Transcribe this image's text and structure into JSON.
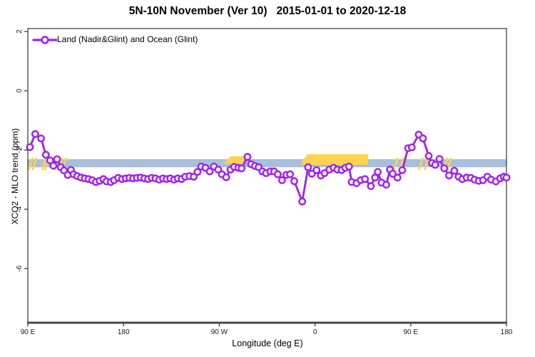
{
  "chart_data": {
    "type": "line",
    "title": "5N-10N November (Ver 10)   2015-01-01 to 2020-12-18",
    "xlabel": "Longitude (deg E)",
    "ylabel": "XCO2 - MLO trend (ppm)",
    "legend_position": "top-left",
    "grid": false,
    "xlim": [
      90,
      540
    ],
    "ylim": [
      -7.83,
      2.1
    ],
    "x_ticks": [
      {
        "deg": 90,
        "label": "90 E"
      },
      {
        "deg": 180,
        "label": "180"
      },
      {
        "deg": 270,
        "label": "90 W"
      },
      {
        "deg": 360,
        "label": "0"
      },
      {
        "deg": 450,
        "label": "90 E"
      },
      {
        "deg": 540,
        "label": "180"
      }
    ],
    "y_ticks": [
      {
        "value": 2,
        "label": "2"
      },
      {
        "value": 0,
        "label": "0"
      },
      {
        "value": -2,
        "label": "-2"
      },
      {
        "value": -4,
        "label": "-4"
      },
      {
        "value": -6,
        "label": "-6"
      }
    ],
    "reference_band": {
      "color": "#a9bfdb",
      "value_top": -2.31,
      "value_bottom": -2.58,
      "x_from": 90,
      "x_to": 540
    },
    "highlights": {
      "color": "#ffd24f",
      "segments": [
        {
          "from": 91,
          "to": 98,
          "style": "hatch"
        },
        {
          "from": 104,
          "to": 109,
          "style": "hatch"
        },
        {
          "from": 115,
          "to": 126,
          "style": "hatch"
        },
        {
          "from": 274,
          "to": 294,
          "style": "solid",
          "value_top": -2.21,
          "value_bottom": -2.47
        },
        {
          "from": 346,
          "to": 410,
          "style": "solid",
          "value_top": -2.14,
          "value_bottom": -2.5
        },
        {
          "from": 434,
          "to": 438,
          "style": "hatch"
        },
        {
          "from": 440,
          "to": 443,
          "style": "hatch"
        },
        {
          "from": 458,
          "to": 461,
          "style": "hatch"
        },
        {
          "from": 464,
          "to": 466,
          "style": "hatch"
        },
        {
          "from": 481,
          "to": 488,
          "style": "hatch"
        }
      ]
    },
    "series": [
      {
        "name": "Land (Nadir&Glint) and Ocean (Glint)",
        "color": "#a020f0",
        "marker": "open-circle",
        "points": [
          [
            92,
            -1.9
          ],
          [
            97,
            -1.46
          ],
          [
            102.5,
            -1.61
          ],
          [
            107,
            -2.16
          ],
          [
            111,
            -2.35
          ],
          [
            114,
            -2.53
          ],
          [
            117.5,
            -2.31
          ],
          [
            121,
            -2.58
          ],
          [
            124,
            -2.69
          ],
          [
            127.5,
            -2.84
          ],
          [
            130.5,
            -2.67
          ],
          [
            133,
            -2.82
          ],
          [
            136.5,
            -2.88
          ],
          [
            140,
            -2.93
          ],
          [
            143.5,
            -2.96
          ],
          [
            147,
            -2.98
          ],
          [
            150.5,
            -3.02
          ],
          [
            154,
            -3.08
          ],
          [
            157.5,
            -3.04
          ],
          [
            161,
            -2.98
          ],
          [
            164,
            -3.06
          ],
          [
            168,
            -3.08
          ],
          [
            171,
            -3.02
          ],
          [
            175,
            -2.94
          ],
          [
            178.5,
            -2.98
          ],
          [
            182,
            -2.96
          ],
          [
            185.5,
            -2.94
          ],
          [
            189,
            -2.96
          ],
          [
            192.5,
            -2.94
          ],
          [
            196,
            -2.93
          ],
          [
            199.5,
            -2.96
          ],
          [
            203,
            -2.98
          ],
          [
            206.5,
            -2.94
          ],
          [
            210,
            -2.96
          ],
          [
            213.5,
            -3.0
          ],
          [
            217,
            -2.96
          ],
          [
            220.5,
            -2.98
          ],
          [
            224,
            -2.96
          ],
          [
            227.5,
            -3.0
          ],
          [
            231,
            -2.96
          ],
          [
            234.5,
            -2.98
          ],
          [
            238,
            -2.9
          ],
          [
            242,
            -2.88
          ],
          [
            246,
            -2.9
          ],
          [
            249.5,
            -2.74
          ],
          [
            253,
            -2.56
          ],
          [
            257,
            -2.6
          ],
          [
            261,
            -2.72
          ],
          [
            265,
            -2.56
          ],
          [
            269,
            -2.66
          ],
          [
            272.5,
            -2.82
          ],
          [
            276.5,
            -2.92
          ],
          [
            280.5,
            -2.66
          ],
          [
            284,
            -2.57
          ],
          [
            288,
            -2.6
          ],
          [
            291,
            -2.62
          ],
          [
            296.5,
            -2.23
          ],
          [
            300,
            -2.48
          ],
          [
            303.5,
            -2.54
          ],
          [
            307,
            -2.58
          ],
          [
            310.5,
            -2.72
          ],
          [
            314,
            -2.78
          ],
          [
            318,
            -2.72
          ],
          [
            321.5,
            -2.72
          ],
          [
            325,
            -2.82
          ],
          [
            329,
            -3.02
          ],
          [
            333,
            -2.84
          ],
          [
            336.5,
            -2.82
          ],
          [
            340.5,
            -3.05
          ],
          [
            348,
            -3.74
          ],
          [
            353.5,
            -2.58
          ],
          [
            357,
            -2.8
          ],
          [
            361.5,
            -2.68
          ],
          [
            365.5,
            -2.86
          ],
          [
            369,
            -2.78
          ],
          [
            373.5,
            -2.66
          ],
          [
            377.5,
            -2.6
          ],
          [
            381,
            -2.66
          ],
          [
            385,
            -2.68
          ],
          [
            388.5,
            -2.6
          ],
          [
            392,
            -2.56
          ],
          [
            394.5,
            -3.08
          ],
          [
            399,
            -3.12
          ],
          [
            403,
            -3.02
          ],
          [
            407,
            -2.98
          ],
          [
            412.5,
            -3.22
          ],
          [
            416.5,
            -2.93
          ],
          [
            419,
            -2.74
          ],
          [
            422.5,
            -3.1
          ],
          [
            427,
            -3.17
          ],
          [
            430.5,
            -2.66
          ],
          [
            433,
            -2.8
          ],
          [
            437.5,
            -2.93
          ],
          [
            442,
            -2.68
          ],
          [
            447.5,
            -1.94
          ],
          [
            451,
            -1.91
          ],
          [
            457.5,
            -1.48
          ],
          [
            461.5,
            -1.61
          ],
          [
            467,
            -2.2
          ],
          [
            470,
            -2.44
          ],
          [
            473,
            -2.5
          ],
          [
            477,
            -2.3
          ],
          [
            481.5,
            -2.62
          ],
          [
            486,
            -2.86
          ],
          [
            491,
            -2.7
          ],
          [
            495,
            -2.9
          ],
          [
            498.5,
            -2.98
          ],
          [
            502.5,
            -2.93
          ],
          [
            506.5,
            -2.94
          ],
          [
            510,
            -3.0
          ],
          [
            514,
            -3.04
          ],
          [
            518,
            -3.02
          ],
          [
            522,
            -2.9
          ],
          [
            525.5,
            -3.0
          ],
          [
            530,
            -3.06
          ],
          [
            534,
            -2.96
          ],
          [
            537.5,
            -2.9
          ],
          [
            540,
            -2.93
          ]
        ]
      }
    ]
  }
}
